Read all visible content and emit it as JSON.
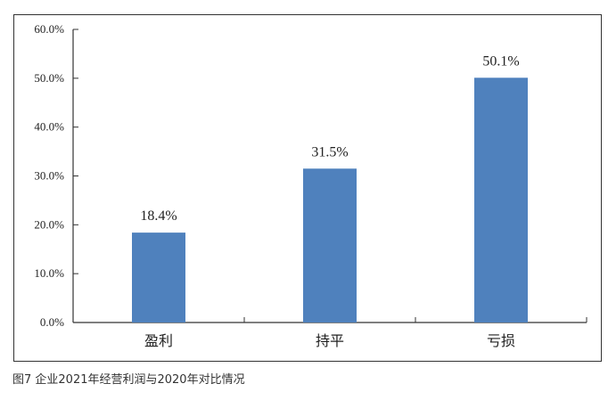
{
  "caption": "图7 企业2021年经营利润与2020年对比情况",
  "chart_data": {
    "type": "bar",
    "title": "",
    "xlabel": "",
    "ylabel": "",
    "categories": [
      "盈利",
      "持平",
      "亏损"
    ],
    "values": [
      18.4,
      31.5,
      50.1
    ],
    "data_labels": [
      "18.4%",
      "31.5%",
      "50.1%"
    ],
    "ylim": [
      0,
      60
    ],
    "yticks": [
      "0.0%",
      "10.0%",
      "20.0%",
      "30.0%",
      "40.0%",
      "50.0%",
      "60.0%"
    ],
    "grid": false,
    "legend": "none",
    "bar_color": "#4f81bd"
  }
}
